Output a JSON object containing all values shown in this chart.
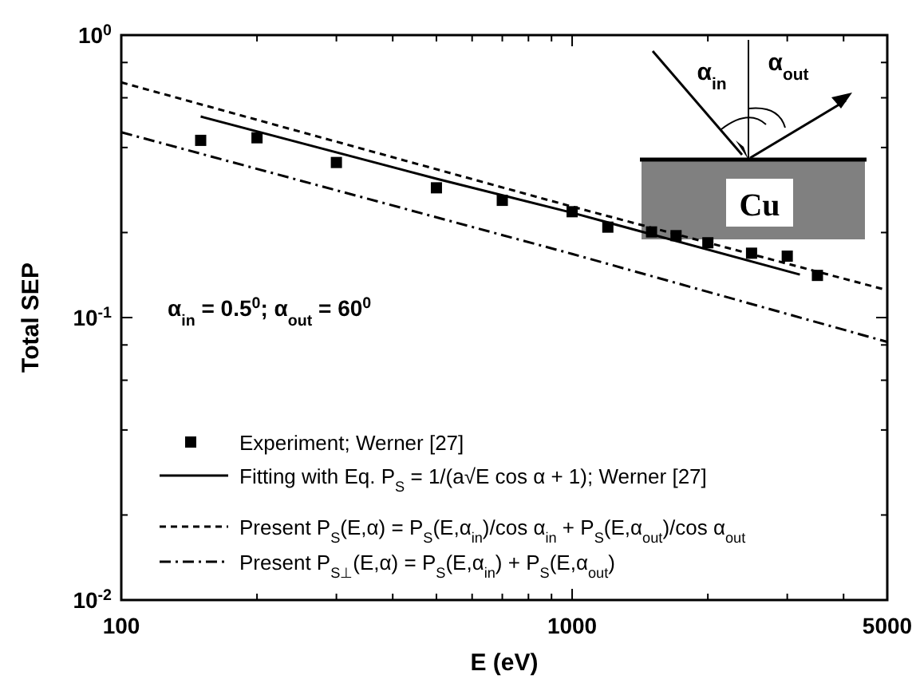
{
  "chart_data": {
    "type": "line",
    "xlabel": "E (eV)",
    "ylabel": "Total  SEP",
    "log": "xy",
    "xlim": [
      100,
      5000
    ],
    "ylim": [
      0.01,
      1
    ],
    "xticks": [
      100,
      {
        "value": 200,
        "label": null
      },
      {
        "value": 300,
        "label": null
      },
      {
        "value": 400,
        "label": null
      },
      {
        "value": 500,
        "label": null
      },
      {
        "value": 600,
        "label": null
      },
      {
        "value": 700,
        "label": null
      },
      {
        "value": 800,
        "label": null
      },
      {
        "value": 900,
        "label": null
      },
      1000,
      {
        "value": 2000,
        "label": null
      },
      {
        "value": 3000,
        "label": null
      },
      {
        "value": 4000,
        "label": null
      },
      5000
    ],
    "yticks": [
      {
        "value": 0.01,
        "label": "10$^{-2}$"
      },
      {
        "value": 0.02,
        "label": null
      },
      {
        "value": 0.04,
        "label": null
      },
      {
        "value": 0.06,
        "label": null
      },
      {
        "value": 0.08,
        "label": null
      },
      {
        "value": 0.1,
        "label": "10$^{-1}$"
      },
      {
        "value": 0.2,
        "label": null
      },
      {
        "value": 0.4,
        "label": null
      },
      {
        "value": 0.6,
        "label": null
      },
      {
        "value": 0.8,
        "label": null
      },
      {
        "value": 1,
        "label": "10$^{0}$"
      }
    ],
    "grid": false,
    "legend": "left",
    "series": [
      {
        "name": "Experiment; Werner [27]",
        "type": "scatter",
        "marker": "square",
        "color": "#000000",
        "x": [
          150,
          200,
          300,
          500,
          700,
          1000,
          1200,
          1500,
          1700,
          2000,
          2500,
          3000,
          3500
        ],
        "values": [
          0.424,
          0.433,
          0.354,
          0.288,
          0.26,
          0.237,
          0.209,
          0.201,
          0.195,
          0.184,
          0.169,
          0.165,
          0.141
        ]
      },
      {
        "name": "Fitting with Eq. P$_{S}$ = 1/(a√E cos α + 1); Werner [27]",
        "line_style": "solid",
        "color": "#000000",
        "x": [
          150,
          500,
          1000,
          3200
        ],
        "values": [
          0.515,
          0.31,
          0.235,
          0.142
        ]
      },
      {
        "name": "Present   P$_{S}$(E,α) = P$_{S}$(E,α$_{in}$)/cos α$_{in}$ + P$_{S}$(E,α$_{out}$)/cos α$_{out}$",
        "line_style": "dashed",
        "color": "#000000",
        "x": [
          100,
          1000,
          5000
        ],
        "values": [
          0.68,
          0.247,
          0.125
        ]
      },
      {
        "name": "Present   P$_{S⊥}$(E,α) = P$_{S}$(E,α$_{in}$) + P$_{S}$(E,α$_{out}$)",
        "line_style": "dashdot",
        "color": "#000000",
        "x": [
          100,
          1000,
          5000
        ],
        "values": [
          0.453,
          0.168,
          0.082
        ]
      }
    ],
    "annotations": [
      "α$_{in}$ = 0.5$^{0}$;  α$_{out}$ = 60$^{0}$",
      "Cu",
      "α$_{in}$",
      "α$_{out}$"
    ]
  }
}
